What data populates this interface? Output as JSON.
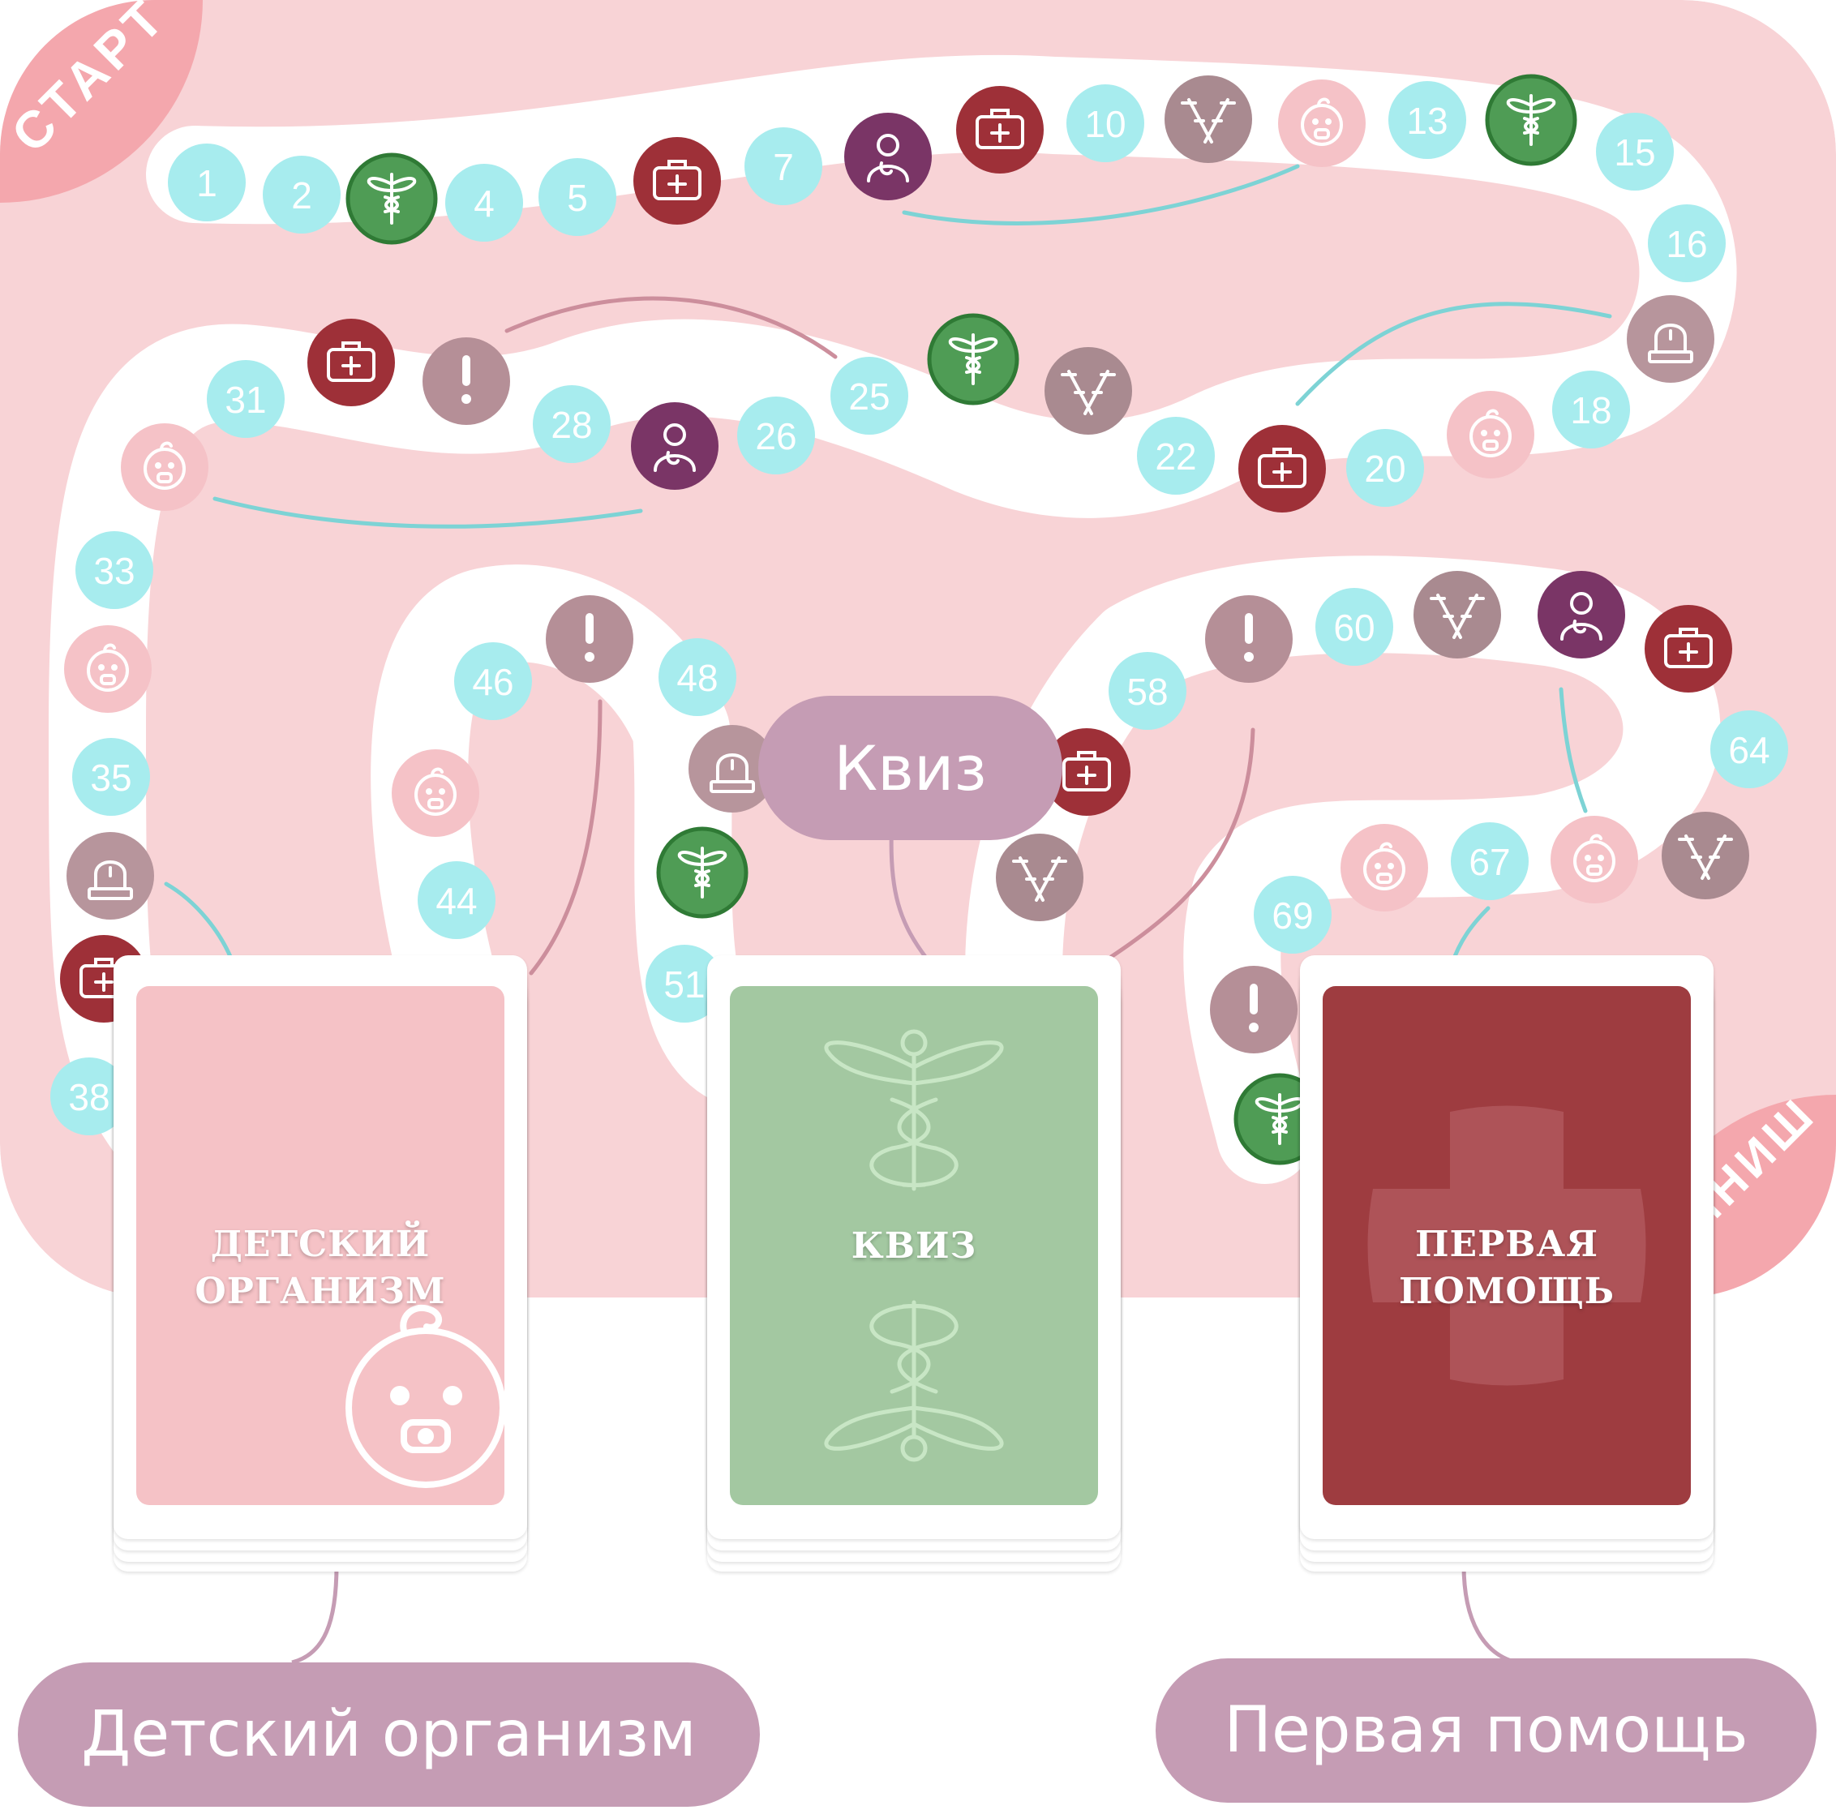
{
  "board": {
    "start_label": "СТАРТ",
    "finish_label": "ФИНИШ",
    "colors": {
      "background": "#f8d3d6",
      "path": "#ffffff",
      "number_cell": "#a7ecee",
      "number_text": "#ffffff",
      "first_aid": "#9e3038",
      "quiz": "#4f9c55",
      "doctor": "#7a3566",
      "crutches": "#a98a90",
      "child": "#f5c2c7",
      "alert": "#b58f97",
      "siren": "#b7959c",
      "corner_badge": "#f4a7ad",
      "arrow_teal": "#7dd3d5",
      "arrow_mauve": "#cc8e9c"
    },
    "cells": [
      {
        "type": "number",
        "label": "1"
      },
      {
        "type": "number",
        "label": "2"
      },
      {
        "type": "quiz",
        "icon": "caduceus-icon"
      },
      {
        "type": "number",
        "label": "4"
      },
      {
        "type": "number",
        "label": "5"
      },
      {
        "type": "first_aid",
        "icon": "first-aid-kit-icon"
      },
      {
        "type": "number",
        "label": "7"
      },
      {
        "type": "doctor",
        "icon": "doctor-icon"
      },
      {
        "type": "first_aid",
        "icon": "first-aid-kit-icon"
      },
      {
        "type": "number",
        "label": "10"
      },
      {
        "type": "crutches",
        "icon": "crutches-icon"
      },
      {
        "type": "child",
        "icon": "baby-icon"
      },
      {
        "type": "number",
        "label": "13"
      },
      {
        "type": "quiz",
        "icon": "caduceus-icon"
      },
      {
        "type": "number",
        "label": "15"
      },
      {
        "type": "number",
        "label": "16"
      },
      {
        "type": "siren",
        "icon": "siren-icon"
      },
      {
        "type": "number",
        "label": "18"
      },
      {
        "type": "child",
        "icon": "baby-icon"
      },
      {
        "type": "number",
        "label": "20"
      },
      {
        "type": "first_aid",
        "icon": "first-aid-kit-icon"
      },
      {
        "type": "number",
        "label": "22"
      },
      {
        "type": "crutches",
        "icon": "crutches-icon"
      },
      {
        "type": "quiz",
        "icon": "caduceus-icon"
      },
      {
        "type": "number",
        "label": "25"
      },
      {
        "type": "number",
        "label": "26"
      },
      {
        "type": "doctor",
        "icon": "doctor-icon"
      },
      {
        "type": "number",
        "label": "28"
      },
      {
        "type": "alert",
        "icon": "exclamation-icon"
      },
      {
        "type": "first_aid",
        "icon": "first-aid-kit-icon"
      },
      {
        "type": "number",
        "label": "31"
      },
      {
        "type": "child",
        "icon": "baby-icon"
      },
      {
        "type": "number",
        "label": "33"
      },
      {
        "type": "child",
        "icon": "baby-icon"
      },
      {
        "type": "number",
        "label": "35"
      },
      {
        "type": "siren",
        "icon": "siren-icon"
      },
      {
        "type": "first_aid",
        "icon": "first-aid-kit-icon"
      },
      {
        "type": "number",
        "label": "38"
      },
      {
        "type": "number",
        "label": "44"
      },
      {
        "type": "child",
        "icon": "baby-icon"
      },
      {
        "type": "number",
        "label": "46"
      },
      {
        "type": "alert",
        "icon": "exclamation-icon"
      },
      {
        "type": "number",
        "label": "48"
      },
      {
        "type": "siren",
        "icon": "siren-icon"
      },
      {
        "type": "quiz",
        "icon": "caduceus-icon"
      },
      {
        "type": "number",
        "label": "51"
      },
      {
        "type": "first_aid",
        "icon": "first-aid-kit-icon"
      },
      {
        "type": "crutches",
        "icon": "crutches-icon"
      },
      {
        "type": "number",
        "label": "58"
      },
      {
        "type": "alert",
        "icon": "exclamation-icon"
      },
      {
        "type": "number",
        "label": "60"
      },
      {
        "type": "crutches",
        "icon": "crutches-icon"
      },
      {
        "type": "doctor",
        "icon": "doctor-icon"
      },
      {
        "type": "first_aid",
        "icon": "first-aid-kit-icon"
      },
      {
        "type": "number",
        "label": "64"
      },
      {
        "type": "crutches",
        "icon": "crutches-icon"
      },
      {
        "type": "child",
        "icon": "baby-icon"
      },
      {
        "type": "number",
        "label": "67"
      },
      {
        "type": "child",
        "icon": "baby-icon"
      },
      {
        "type": "number",
        "label": "69"
      },
      {
        "type": "alert",
        "icon": "exclamation-icon"
      },
      {
        "type": "quiz",
        "icon": "caduceus-icon"
      }
    ]
  },
  "cards": [
    {
      "id": "child",
      "title": "ДЕТСКИЙ\nОРГАНИЗМ",
      "color": "#f5c2c6",
      "icon": "baby-icon"
    },
    {
      "id": "quiz",
      "title": "КВИЗ",
      "color": "#a3c8a1",
      "icon": "caduceus-icon"
    },
    {
      "id": "first_aid",
      "title": "ПЕРВАЯ\nПОМОЩЬ",
      "color": "#9e3c40",
      "icon": "medical-cross-icon"
    }
  ],
  "labels": {
    "quiz": "Квиз",
    "child": "Детский организм",
    "first_aid": "Первая помощь"
  }
}
